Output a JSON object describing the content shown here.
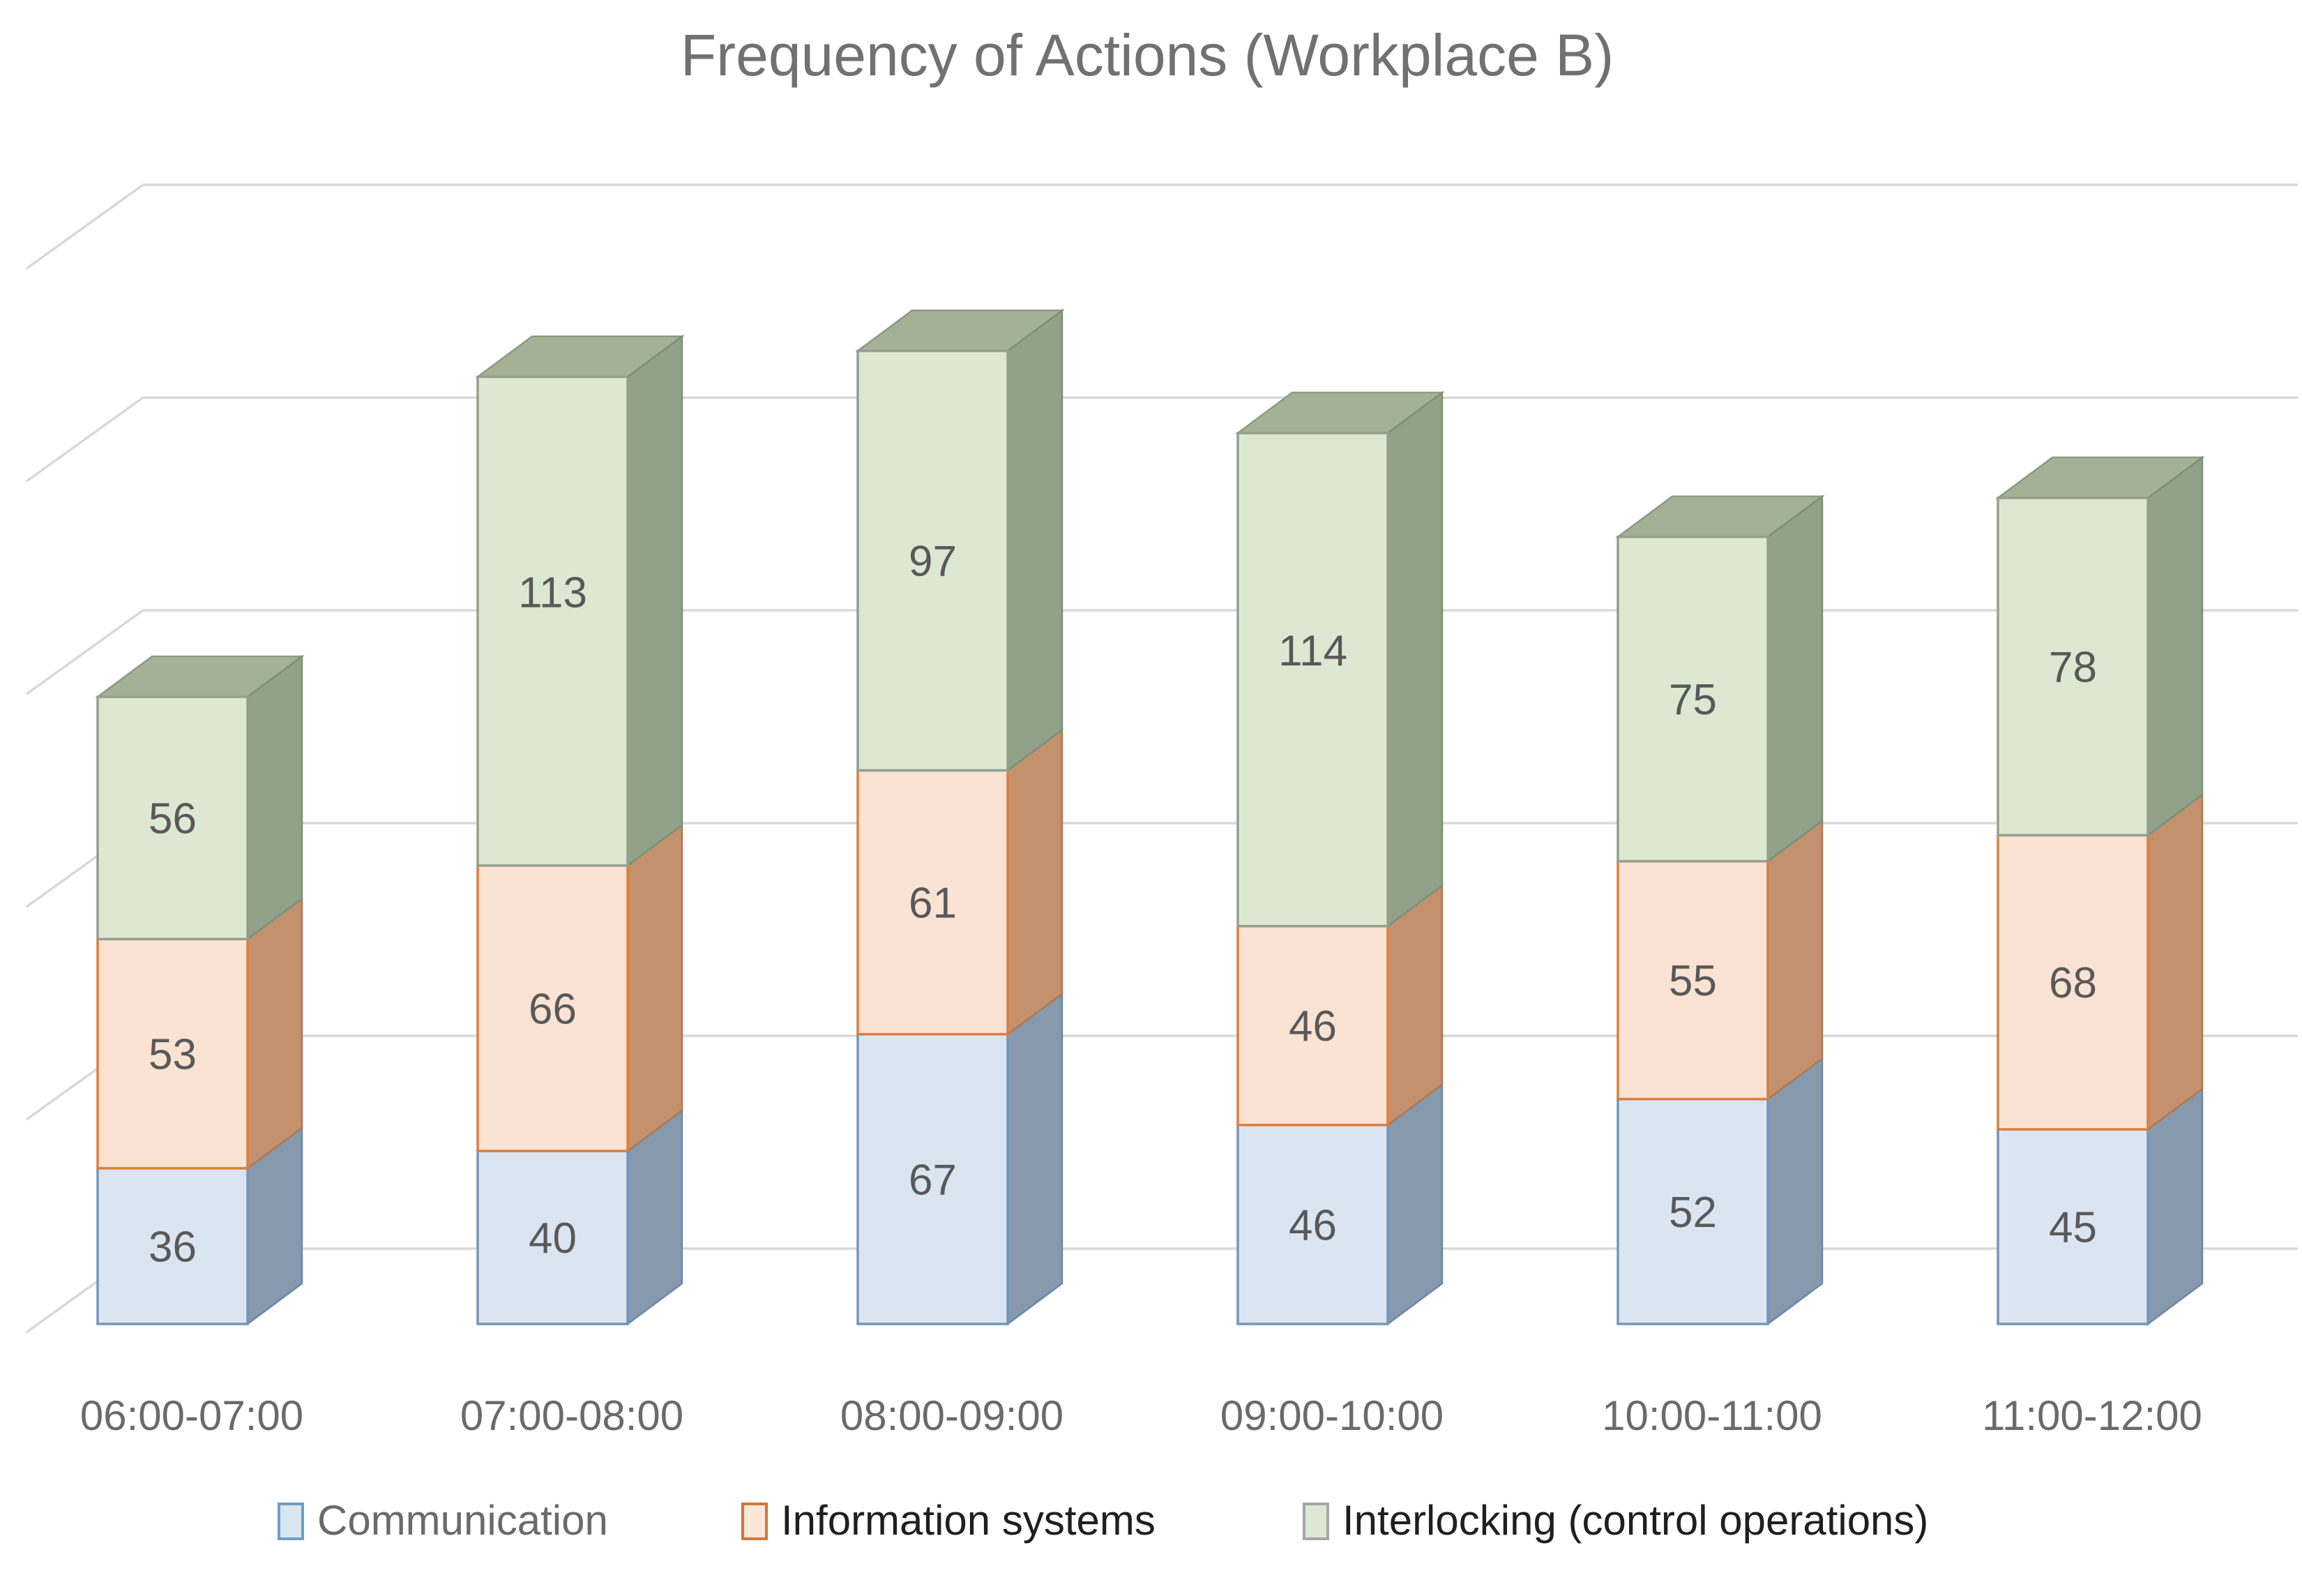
{
  "title_color": "#717171",
  "chart_data": {
    "type": "bar",
    "subtype": "3d-stacked-column",
    "title": "Frequency of Actions (Workplace B)",
    "xlabel": "",
    "ylabel": "",
    "categories": [
      "06:00-07:00",
      "07:00-08:00",
      "08:00-09:00",
      "09:00-10:00",
      "10:00-11:00",
      "11:00-12:00"
    ],
    "series": [
      {
        "name": "Communication",
        "values": [
          36,
          40,
          67,
          46,
          52,
          45
        ],
        "fill": "#dbe5f1",
        "stroke": "#7396bc",
        "side": "#8699ad",
        "side_stroke": "#6e87a3"
      },
      {
        "name": "Information systems",
        "values": [
          53,
          66,
          61,
          46,
          55,
          68
        ],
        "fill": "#fbe3d4",
        "stroke": "#dd7e3f",
        "side": "#c3916e",
        "side_stroke": "#a87a57"
      },
      {
        "name": "Interlocking (control operations)",
        "values": [
          56,
          113,
          97,
          114,
          75,
          78
        ],
        "fill": "#dde8d2",
        "stroke": "#94a08c",
        "side": "#92a18a",
        "side_stroke": "#7d8f76",
        "top": "#a3b295",
        "top_stroke": "#8d9a84"
      }
    ],
    "totals": [
      145,
      219,
      225,
      206,
      182,
      191
    ],
    "ylim": [
      0,
      250
    ],
    "y_major_unit": 50,
    "y_gridline_values": [
      0,
      50,
      100,
      150,
      200,
      250
    ],
    "y_axis_labels_visible": false,
    "grid": true,
    "gridline_color": "#d8d8d8",
    "value_label_color": "#595959",
    "category_label_color": "#6a6a6a",
    "legend_position": "bottom"
  },
  "legend": {
    "items": [
      {
        "label": "Communication",
        "text_color": "#6a6a6a",
        "swatch_fill": "#dbe5f1",
        "swatch_stroke": "#6d9eca"
      },
      {
        "label": "Information systems",
        "text_color": "#1f1f1f",
        "swatch_fill": "#fbe7d9",
        "swatch_stroke": "#d2773b"
      },
      {
        "label": "Interlocking (control operations)",
        "text_color": "#1f1f1f",
        "swatch_fill": "#dde8d3",
        "swatch_stroke": "#a6a6a6"
      }
    ]
  }
}
